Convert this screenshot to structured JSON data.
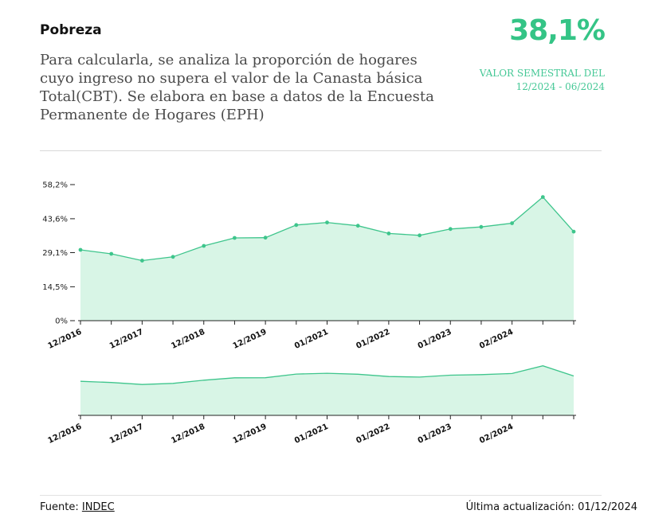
{
  "header": {
    "title": "Pobreza",
    "description": "Para calcularla, se analiza la proporción de hogares cuyo ingreso no supera el valor de la Canasta básica Total(CBT). Se elabora en base a datos de la Encuesta Permanente de Hogares (EPH)",
    "current_value": "38,1%",
    "period_label": "VALOR SEMESTRAL DEL",
    "period_range": "12/2024 - 06/2024"
  },
  "colors": {
    "accent": "#34c486",
    "line": "#3ec58c",
    "area": "#d8f5e6",
    "divider": "#d8d8d8"
  },
  "chart_data": [
    {
      "type": "area",
      "title": "",
      "xlabel": "",
      "ylabel": "",
      "ylim": [
        0,
        58.2
      ],
      "y_ticks": [
        0,
        14.5,
        29.1,
        43.6,
        58.2
      ],
      "y_tick_labels": [
        "0%",
        "14,5%",
        "29,1%",
        "43,6%",
        "58,2%"
      ],
      "x_tick_labels": [
        "12/2016",
        "12/2017",
        "12/2018",
        "12/2019",
        "01/2021",
        "01/2022",
        "01/2023",
        "02/2024"
      ],
      "grid": false,
      "legend": "none",
      "series": [
        {
          "values": [
            30.3,
            28.6,
            25.7,
            27.3,
            32.0,
            35.4,
            35.5,
            40.9,
            42.0,
            40.6,
            37.3,
            36.5,
            39.2,
            40.1,
            41.7,
            52.9,
            38.1
          ]
        }
      ]
    },
    {
      "type": "area",
      "title": "",
      "xlabel": "",
      "ylabel": "",
      "x_tick_labels": [
        "12/2016",
        "12/2017",
        "12/2018",
        "12/2019",
        "01/2021",
        "01/2022",
        "01/2023",
        "02/2024"
      ],
      "grid": false,
      "legend": "none",
      "series": [
        {
          "values": [
            30.3,
            28.6,
            25.7,
            27.3,
            32.0,
            35.4,
            35.5,
            40.9,
            42.0,
            40.6,
            37.3,
            36.5,
            39.2,
            40.1,
            41.7,
            52.9,
            38.1
          ]
        }
      ]
    }
  ],
  "footer": {
    "source_label": "Fuente:",
    "source_link": "INDEC",
    "updated_label": "Última actualización: 01/12/2024"
  }
}
